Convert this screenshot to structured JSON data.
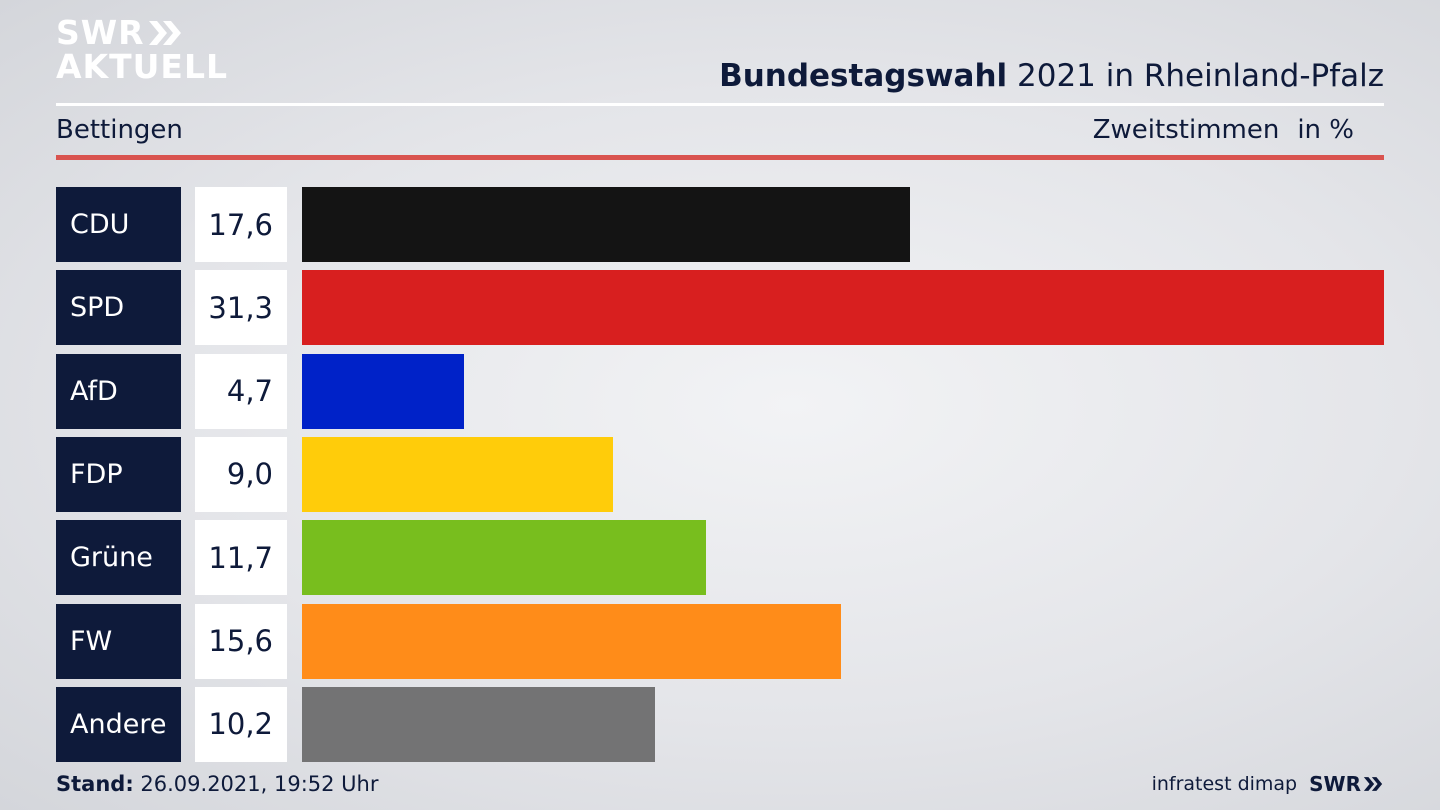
{
  "header": {
    "logo_line1": "SWR",
    "logo_line2": "AKTUELL",
    "title_bold": "Bundestagswahl",
    "title_rest": " 2021 in Rheinland-Pfalz",
    "region": "Bettingen",
    "metric": "Zweitstimmen",
    "unit": "in %"
  },
  "chart_data": {
    "type": "bar",
    "orientation": "horizontal",
    "title": "Bundestagswahl 2021 in Rheinland-Pfalz",
    "categories": [
      "CDU",
      "SPD",
      "AfD",
      "FDP",
      "Grüne",
      "FW",
      "Andere"
    ],
    "values": [
      17.6,
      31.3,
      4.7,
      9.0,
      11.7,
      15.6,
      10.2
    ],
    "value_labels": [
      "17,6",
      "31,3",
      "4,7",
      "9,0",
      "11,7",
      "15,6",
      "10,2"
    ],
    "colors": [
      "#141414",
      "#d81f1f",
      "#0022c8",
      "#ffcc0a",
      "#78be1e",
      "#ff8c19",
      "#737374"
    ],
    "xlim": [
      0,
      31.3
    ],
    "grid": false,
    "legend": "none"
  },
  "footer": {
    "stand_label": "Stand:",
    "stand_value": " 26.09.2021, 19:52 Uhr",
    "source": "infratest dimap",
    "brand": "SWR"
  }
}
